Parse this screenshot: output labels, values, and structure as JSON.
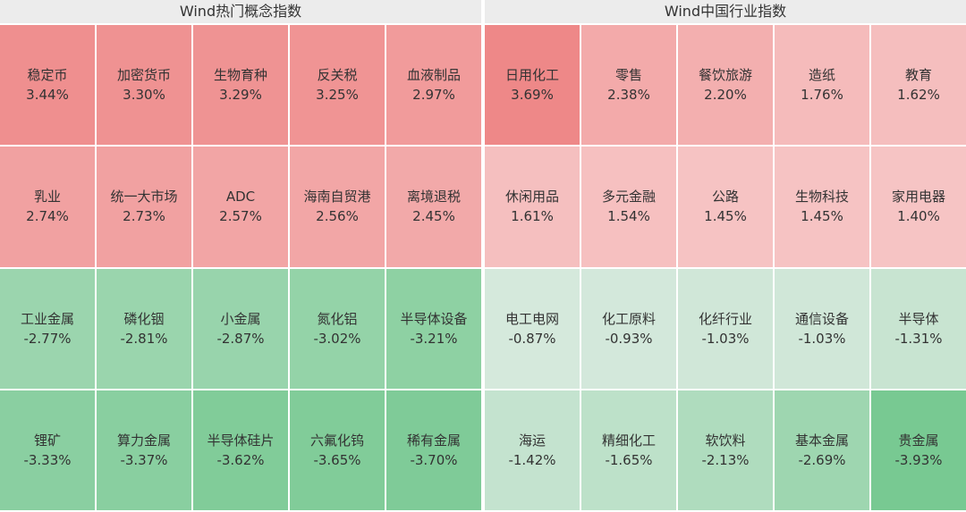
{
  "panels": [
    {
      "title": "Wind热门概念指数",
      "tiles": [
        {
          "name": "稳定币",
          "value": 3.44,
          "label": "3.44%"
        },
        {
          "name": "加密货币",
          "value": 3.3,
          "label": "3.30%"
        },
        {
          "name": "生物育种",
          "value": 3.29,
          "label": "3.29%"
        },
        {
          "name": "反关税",
          "value": 3.25,
          "label": "3.25%"
        },
        {
          "name": "血液制品",
          "value": 2.97,
          "label": "2.97%"
        },
        {
          "name": "乳业",
          "value": 2.74,
          "label": "2.74%"
        },
        {
          "name": "统一大市场",
          "value": 2.73,
          "label": "2.73%"
        },
        {
          "name": "ADC",
          "value": 2.57,
          "label": "2.57%"
        },
        {
          "name": "海南自贸港",
          "value": 2.56,
          "label": "2.56%"
        },
        {
          "name": "离境退税",
          "value": 2.45,
          "label": "2.45%"
        },
        {
          "name": "工业金属",
          "value": -2.77,
          "label": "-2.77%"
        },
        {
          "name": "磷化铟",
          "value": -2.81,
          "label": "-2.81%"
        },
        {
          "name": "小金属",
          "value": -2.87,
          "label": "-2.87%"
        },
        {
          "name": "氮化铝",
          "value": -3.02,
          "label": "-3.02%"
        },
        {
          "name": "半导体设备",
          "value": -3.21,
          "label": "-3.21%"
        },
        {
          "name": "锂矿",
          "value": -3.33,
          "label": "-3.33%"
        },
        {
          "name": "算力金属",
          "value": -3.37,
          "label": "-3.37%"
        },
        {
          "name": "半导体硅片",
          "value": -3.62,
          "label": "-3.62%"
        },
        {
          "name": "六氟化钨",
          "value": -3.65,
          "label": "-3.65%"
        },
        {
          "name": "稀有金属",
          "value": -3.7,
          "label": "-3.70%"
        }
      ]
    },
    {
      "title": "Wind中国行业指数",
      "tiles": [
        {
          "name": "日用化工",
          "value": 3.69,
          "label": "3.69%"
        },
        {
          "name": "零售",
          "value": 2.38,
          "label": "2.38%"
        },
        {
          "name": "餐饮旅游",
          "value": 2.2,
          "label": "2.20%"
        },
        {
          "name": "造纸",
          "value": 1.76,
          "label": "1.76%"
        },
        {
          "name": "教育",
          "value": 1.62,
          "label": "1.62%"
        },
        {
          "name": "休闲用品",
          "value": 1.61,
          "label": "1.61%"
        },
        {
          "name": "多元金融",
          "value": 1.54,
          "label": "1.54%"
        },
        {
          "name": "公路",
          "value": 1.45,
          "label": "1.45%"
        },
        {
          "name": "生物科技",
          "value": 1.45,
          "label": "1.45%"
        },
        {
          "name": "家用电器",
          "value": 1.4,
          "label": "1.40%"
        },
        {
          "name": "电工电网",
          "value": -0.87,
          "label": "-0.87%"
        },
        {
          "name": "化工原料",
          "value": -0.93,
          "label": "-0.93%"
        },
        {
          "name": "化纤行业",
          "value": -1.03,
          "label": "-1.03%"
        },
        {
          "name": "通信设备",
          "value": -1.03,
          "label": "-1.03%"
        },
        {
          "name": "半导体",
          "value": -1.31,
          "label": "-1.31%"
        },
        {
          "name": "海运",
          "value": -1.42,
          "label": "-1.42%"
        },
        {
          "name": "精细化工",
          "value": -1.65,
          "label": "-1.65%"
        },
        {
          "name": "软饮料",
          "value": -2.13,
          "label": "-2.13%"
        },
        {
          "name": "基本金属",
          "value": -2.69,
          "label": "-2.69%"
        },
        {
          "name": "贵金属",
          "value": -3.93,
          "label": "-3.93%"
        }
      ]
    }
  ]
}
